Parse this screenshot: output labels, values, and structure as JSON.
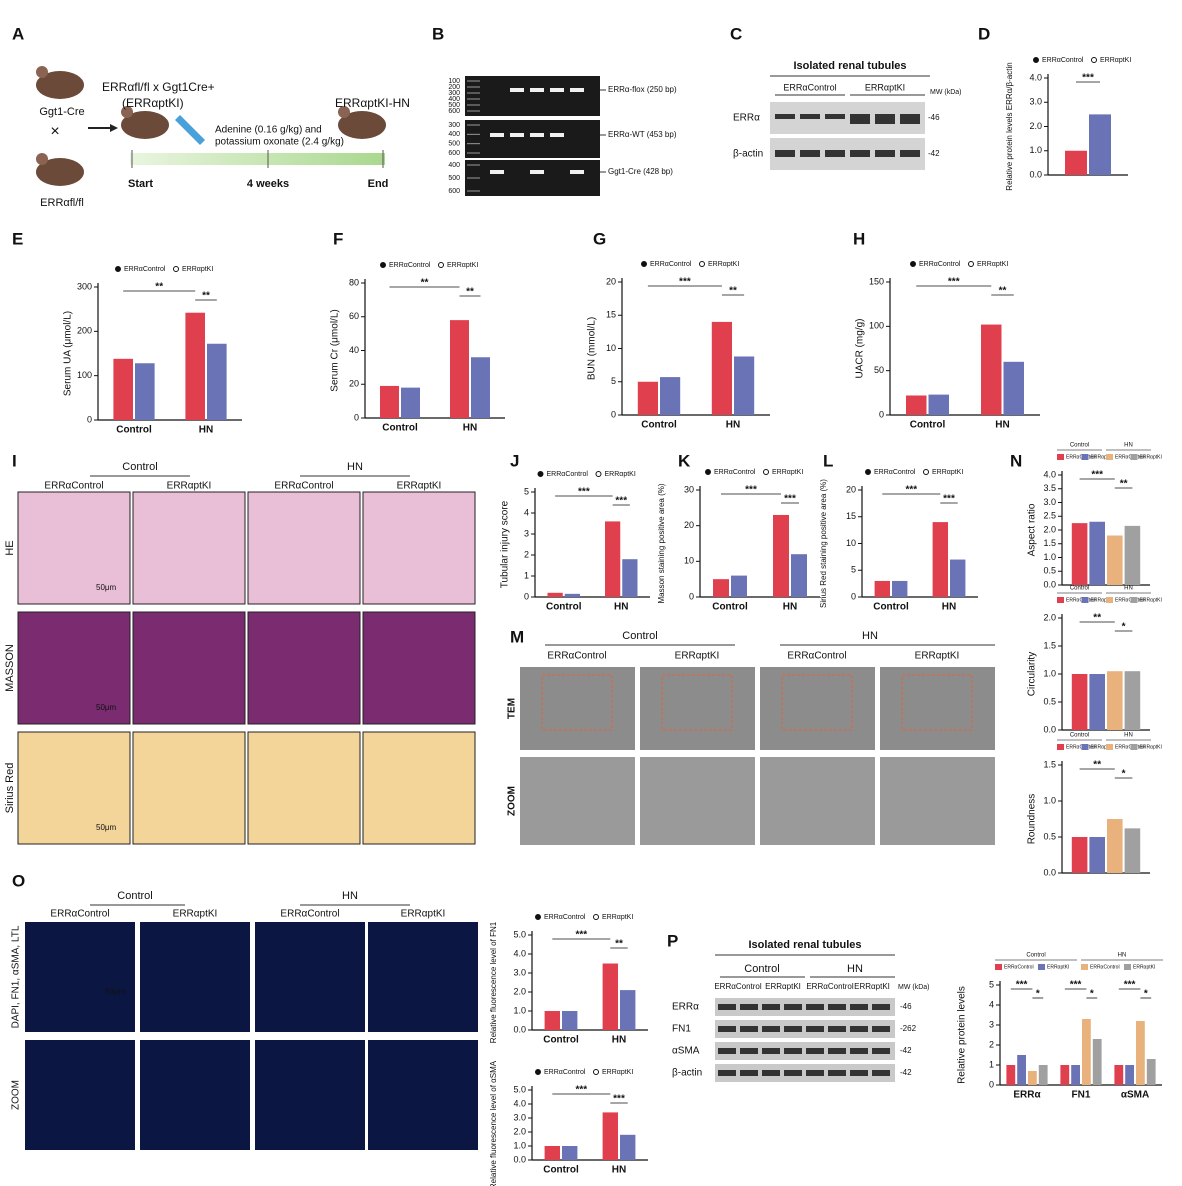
{
  "panel_letters": [
    "A",
    "B",
    "C",
    "D",
    "E",
    "F",
    "G",
    "H",
    "I",
    "J",
    "K",
    "L",
    "M",
    "N",
    "O",
    "P"
  ],
  "A": {
    "parent_strain": "Ggt1-Cre",
    "cross": "×",
    "parent_flox": "ERRαfl/fl",
    "offspring": "ERRαfl/fl x Ggt1Cre+",
    "offspring_short": "(ERRαptKI)",
    "treatment": [
      "Adenine (0.16 g/kg) and",
      "potassium oxonate (2.4 g/kg)"
    ],
    "model": "ERRαptKI-HN",
    "timeline": [
      "Start",
      "4 weeks",
      "End"
    ]
  },
  "B": {
    "ladders": [
      [
        "100",
        "200",
        "300",
        "400",
        "500",
        "600"
      ],
      [
        "300",
        "400",
        "500",
        "600"
      ],
      [
        "400",
        "500",
        "600"
      ]
    ],
    "bands": [
      "ERRα-flox (250 bp)",
      "ERRα-WT (453 bp)",
      "Ggt1-Cre (428 bp)"
    ]
  },
  "C": {
    "title": "Isolated renal tubules",
    "groups": [
      "ERRαControl",
      "ERRαptKI"
    ],
    "mw": "MW (kDa)",
    "rows": [
      "ERRα",
      "β-actin"
    ],
    "sizes": [
      "-46",
      "-42"
    ]
  },
  "I": {
    "groups": [
      "Control",
      "HN"
    ],
    "columns": [
      "ERRαControl",
      "ERRαptKI",
      "ERRαControl",
      "ERRαptKI"
    ],
    "rows": [
      "HE",
      "MASSON",
      "Sirius Red"
    ],
    "scale_bars": [
      "50μm",
      "50μm",
      "50μm"
    ]
  },
  "M": {
    "groups": [
      "Control",
      "HN"
    ],
    "columns": [
      "ERRαControl",
      "ERRαptKI",
      "ERRαControl",
      "ERRαptKI"
    ],
    "rows": [
      "TEM",
      "ZOOM"
    ]
  },
  "O": {
    "groups": [
      "Control",
      "HN"
    ],
    "columns": [
      "ERRαControl",
      "ERRαptKI",
      "ERRαControl",
      "ERRαptKI"
    ],
    "rows": [
      "DAPI, FN1, αSMA, LTL",
      "ZOOM"
    ],
    "scale_bar": "50μm"
  },
  "P": {
    "title": "Isolated renal tubules",
    "groups": [
      "Control",
      "HN"
    ],
    "columns": [
      "ERRαControl",
      "ERRαptKI",
      "ERRαControl",
      "ERRαptKI"
    ],
    "mw": "MW (kDa)",
    "rows": [
      "ERRα",
      "FN1",
      "αSMA",
      "β-actin"
    ],
    "sizes": [
      "-46",
      "-262",
      "-42",
      "-42"
    ]
  },
  "chart_data": [
    {
      "type": "bar",
      "ylabel": "Relative protein levels ERRα/β-actin",
      "categories": [
        null
      ],
      "series": [
        {
          "name": "ERRαControl",
          "color": "#e0404e",
          "values": [
            1.0
          ]
        },
        {
          "name": "ERRαptKI",
          "color": "#6a73b5",
          "values": [
            2.5
          ]
        }
      ],
      "ylim": [
        0,
        4
      ],
      "yticks": [
        {
          "value": 0,
          "label": "0.0"
        },
        {
          "value": 1,
          "label": "1.0"
        },
        {
          "value": 2,
          "label": "2.0"
        },
        {
          "value": 3,
          "label": "3.0"
        },
        {
          "value": 4,
          "label": "4.0"
        }
      ],
      "annotations": [
        "***"
      ]
    },
    {
      "type": "bar",
      "ylabel": "Serum UA (μmol/L)",
      "categories": [
        "Control",
        "HN"
      ],
      "series": [
        {
          "name": "ERRαControl",
          "color": "#e0404e",
          "values": [
            138,
            242
          ]
        },
        {
          "name": "ERRαptKI",
          "color": "#6a73b5",
          "values": [
            128,
            172
          ]
        }
      ],
      "ylim": [
        0,
        300
      ],
      "yticks": [
        0,
        100,
        200,
        300
      ],
      "annotations": [
        "**",
        "**"
      ]
    },
    {
      "type": "bar",
      "ylabel": "Serum Cr (μmol/L)",
      "categories": [
        "Control",
        "HN"
      ],
      "series": [
        {
          "name": "ERRαControl",
          "color": "#e0404e",
          "values": [
            19,
            58
          ]
        },
        {
          "name": "ERRαptKI",
          "color": "#6a73b5",
          "values": [
            18,
            36
          ]
        }
      ],
      "ylim": [
        0,
        80
      ],
      "yticks": [
        0,
        20,
        40,
        60,
        80
      ],
      "annotations": [
        "**",
        "**"
      ]
    },
    {
      "type": "bar",
      "ylabel": "BUN (mmol/L)",
      "categories": [
        "Control",
        "HN"
      ],
      "series": [
        {
          "name": "ERRαControl",
          "color": "#e0404e",
          "values": [
            5,
            14
          ]
        },
        {
          "name": "ERRαptKI",
          "color": "#6a73b5",
          "values": [
            5.7,
            8.8
          ]
        }
      ],
      "ylim": [
        0,
        20
      ],
      "yticks": [
        0,
        5,
        10,
        15,
        20
      ],
      "annotations": [
        "***",
        "**"
      ]
    },
    {
      "type": "bar",
      "ylabel": "UACR (mg/g)",
      "categories": [
        "Control",
        "HN"
      ],
      "series": [
        {
          "name": "ERRαControl",
          "color": "#e0404e",
          "values": [
            22,
            102
          ]
        },
        {
          "name": "ERRαptKI",
          "color": "#6a73b5",
          "values": [
            23,
            60
          ]
        }
      ],
      "ylim": [
        0,
        150
      ],
      "yticks": [
        0,
        50,
        100,
        150
      ],
      "annotations": [
        "***",
        "**"
      ]
    },
    {
      "type": "bar",
      "ylabel": "Tubular injury score",
      "categories": [
        "Control",
        "HN"
      ],
      "series": [
        {
          "name": "ERRαControl",
          "color": "#e0404e",
          "values": [
            0.2,
            3.6
          ]
        },
        {
          "name": "ERRαptKI",
          "color": "#6a73b5",
          "values": [
            0.15,
            1.8
          ]
        }
      ],
      "ylim": [
        0,
        5
      ],
      "yticks": [
        0,
        1,
        2,
        3,
        4,
        5
      ],
      "annotations": [
        "***",
        "***"
      ]
    },
    {
      "type": "bar",
      "ylabel": "Masson staining positive area (%)",
      "categories": [
        "Control",
        "HN"
      ],
      "series": [
        {
          "name": "ERRαControl",
          "color": "#e0404e",
          "values": [
            5,
            23
          ]
        },
        {
          "name": "ERRαptKI",
          "color": "#6a73b5",
          "values": [
            6,
            12
          ]
        }
      ],
      "ylim": [
        0,
        30
      ],
      "yticks": [
        0,
        10,
        20,
        30
      ],
      "annotations": [
        "***",
        "***"
      ]
    },
    {
      "type": "bar",
      "ylabel": "Sirius Red staining positive area (%)",
      "categories": [
        "Control",
        "HN"
      ],
      "series": [
        {
          "name": "ERRαControl",
          "color": "#e0404e",
          "values": [
            3,
            14
          ]
        },
        {
          "name": "ERRαptKI",
          "color": "#6a73b5",
          "values": [
            3,
            7
          ]
        }
      ],
      "ylim": [
        0,
        20
      ],
      "yticks": [
        0,
        5,
        10,
        15,
        20
      ],
      "annotations": [
        "***",
        "***"
      ]
    },
    {
      "type": "bar",
      "ylabel": "Aspect ratio",
      "legend_groups": [
        "Control",
        "HN"
      ],
      "categories": [
        null
      ],
      "series": [
        {
          "name": "ERRαControl",
          "color": "#e0404e",
          "values": [
            2.25
          ]
        },
        {
          "name": "ERRαptKI",
          "color": "#6a73b5",
          "values": [
            2.3
          ]
        },
        {
          "name": "ERRαControl",
          "color": "#e9b27c",
          "values": [
            1.8
          ]
        },
        {
          "name": "ERRαptKI",
          "color": "#a0a0a0",
          "values": [
            2.15
          ]
        }
      ],
      "ylim": [
        0,
        4
      ],
      "yticks": [
        {
          "value": 0,
          "label": "0.0"
        },
        0.5,
        {
          "value": 1,
          "label": "1.0"
        },
        1.5,
        {
          "value": 2,
          "label": "2.0"
        },
        2.5,
        {
          "value": 3,
          "label": "3.0"
        },
        3.5,
        {
          "value": 4,
          "label": "4.0"
        }
      ],
      "annotations": [
        "***",
        "**"
      ]
    },
    {
      "type": "bar",
      "ylabel": "Circularity",
      "legend_groups": [
        "Control",
        "HN"
      ],
      "categories": [
        null
      ],
      "series": [
        {
          "name": "ERRαControl",
          "color": "#e0404e",
          "values": [
            1.0
          ]
        },
        {
          "name": "ERRαptKI",
          "color": "#6a73b5",
          "values": [
            1.0
          ]
        },
        {
          "name": "ERRαControl",
          "color": "#e9b27c",
          "values": [
            1.05
          ]
        },
        {
          "name": "ERRαptKI",
          "color": "#a0a0a0",
          "values": [
            1.05
          ]
        }
      ],
      "ylim": [
        0,
        2
      ],
      "yticks": [
        {
          "value": 0,
          "label": "0.0"
        },
        0.5,
        {
          "value": 1,
          "label": "1.0"
        },
        1.5,
        {
          "value": 2,
          "label": "2.0"
        }
      ],
      "annotations": [
        "**",
        "*"
      ]
    },
    {
      "type": "bar",
      "ylabel": "Roundness",
      "legend_groups": [
        "Control",
        "HN"
      ],
      "categories": [
        null
      ],
      "series": [
        {
          "name": "ERRαControl",
          "color": "#e0404e",
          "values": [
            0.5
          ]
        },
        {
          "name": "ERRαptKI",
          "color": "#6a73b5",
          "values": [
            0.5
          ]
        },
        {
          "name": "ERRαControl",
          "color": "#e9b27c",
          "values": [
            0.75
          ]
        },
        {
          "name": "ERRαptKI",
          "color": "#a0a0a0",
          "values": [
            0.62
          ]
        }
      ],
      "ylim": [
        0,
        1.5
      ],
      "yticks": [
        {
          "value": 0,
          "label": "0.0"
        },
        0.5,
        {
          "value": 1,
          "label": "1.0"
        },
        1.5
      ],
      "annotations": [
        "**",
        "*"
      ]
    },
    {
      "type": "bar",
      "ylabel": "Relative fluorescence level of FN1",
      "categories": [
        "Control",
        "HN"
      ],
      "series": [
        {
          "name": "ERRαControl",
          "color": "#e0404e",
          "values": [
            1.0,
            3.5
          ]
        },
        {
          "name": "ERRαptKI",
          "color": "#6a73b5",
          "values": [
            1.0,
            2.1
          ]
        }
      ],
      "ylim": [
        0,
        5
      ],
      "yticks": [
        {
          "value": 0,
          "label": "0.0"
        },
        {
          "value": 1,
          "label": "1.0"
        },
        {
          "value": 2,
          "label": "2.0"
        },
        {
          "value": 3,
          "label": "3.0"
        },
        {
          "value": 4,
          "label": "4.0"
        },
        {
          "value": 5,
          "label": "5.0"
        }
      ],
      "annotations": [
        "***",
        "**"
      ]
    },
    {
      "type": "bar",
      "ylabel": "Relative fluorescence level of αSMA",
      "categories": [
        "Control",
        "HN"
      ],
      "series": [
        {
          "name": "ERRαControl",
          "color": "#e0404e",
          "values": [
            1.0,
            3.4
          ]
        },
        {
          "name": "ERRαptKI",
          "color": "#6a73b5",
          "values": [
            1.0,
            1.8
          ]
        }
      ],
      "ylim": [
        0,
        5
      ],
      "yticks": [
        {
          "value": 0,
          "label": "0.0"
        },
        {
          "value": 1,
          "label": "1.0"
        },
        {
          "value": 2,
          "label": "2.0"
        },
        {
          "value": 3,
          "label": "3.0"
        },
        {
          "value": 4,
          "label": "4.0"
        },
        {
          "value": 5,
          "label": "5.0"
        }
      ],
      "annotations": [
        "***",
        "***"
      ]
    },
    {
      "type": "bar",
      "ylabel": "Relative protein levels",
      "legend_groups": [
        "Control",
        "HN"
      ],
      "categories": [
        "ERRα",
        "FN1",
        "αSMA"
      ],
      "series": [
        {
          "name": "ERRαControl",
          "color": "#e0404e",
          "values": [
            1.0,
            1.0,
            1.0
          ]
        },
        {
          "name": "ERRαptKI",
          "color": "#6a73b5",
          "values": [
            1.5,
            1.0,
            1.0
          ]
        },
        {
          "name": "ERRαControl",
          "color": "#e9b27c",
          "values": [
            0.7,
            3.3,
            3.2
          ]
        },
        {
          "name": "ERRαptKI",
          "color": "#a0a0a0",
          "values": [
            1.0,
            2.3,
            1.3
          ]
        }
      ],
      "ylim": [
        0,
        5
      ],
      "yticks": [
        0,
        1,
        2,
        3,
        4,
        5
      ],
      "annotations": [
        "***",
        "*",
        "***",
        "*",
        "***",
        "*"
      ]
    }
  ]
}
